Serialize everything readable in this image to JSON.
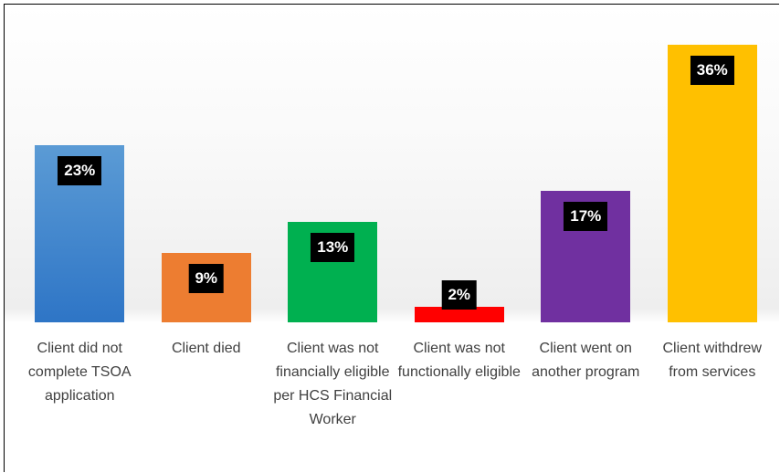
{
  "chart_data": {
    "type": "bar",
    "categories": [
      "Client did not complete TSOA application",
      "Client died",
      "Client was not financially eligible per HCS Financial Worker",
      "Client was not functionally eligible",
      "Client went on another program",
      "Client withdrew from services"
    ],
    "values": [
      23,
      9,
      13,
      2,
      17,
      36
    ],
    "value_labels": [
      "23%",
      "9%",
      "13%",
      "2%",
      "17%",
      "36%"
    ],
    "colors": [
      "#4a8fd6",
      "#ed7d31",
      "#00b050",
      "#ff0000",
      "#7030a0",
      "#ffc000"
    ]
  }
}
